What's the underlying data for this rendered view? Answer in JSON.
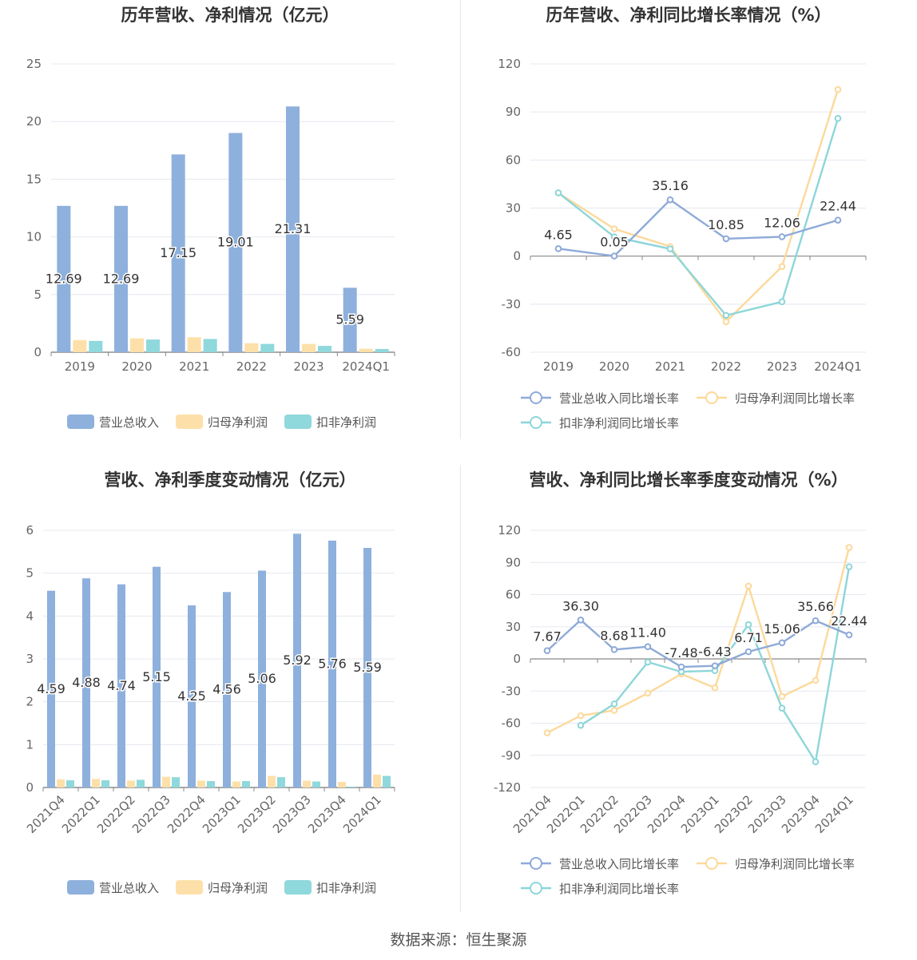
{
  "source": "数据来源：恒生聚源",
  "chart_data": [
    {
      "type": "bar",
      "title": "历年营收、净利情况（亿元）",
      "categories": [
        "2019",
        "2020",
        "2021",
        "2022",
        "2023",
        "2024Q1"
      ],
      "ylim": [
        0,
        25
      ],
      "yticks": [
        0,
        5,
        10,
        15,
        20,
        25
      ],
      "grid": true,
      "legend_position": "bottom",
      "series": [
        {
          "name": "营业总收入",
          "color": "#8eb0dc",
          "values": [
            12.69,
            12.69,
            17.15,
            19.01,
            21.31,
            5.59
          ],
          "labels": [
            "12.69",
            "12.69",
            "17.15",
            "19.01",
            "21.31",
            "5.59"
          ]
        },
        {
          "name": "归母净利润",
          "color": "#fde0a9",
          "values": [
            1.05,
            1.2,
            1.3,
            0.78,
            0.72,
            0.3
          ]
        },
        {
          "name": "扣非净利润",
          "color": "#8fd8db",
          "values": [
            0.98,
            1.1,
            1.15,
            0.72,
            0.55,
            0.28
          ]
        }
      ]
    },
    {
      "type": "line",
      "title": "历年营收、净利同比增长率情况（%）",
      "categories": [
        "2019",
        "2020",
        "2021",
        "2022",
        "2023",
        "2024Q1"
      ],
      "ylim": [
        -60,
        120
      ],
      "yticks": [
        -60,
        -30,
        0,
        30,
        60,
        90,
        120
      ],
      "grid": true,
      "legend_position": "bottom",
      "series": [
        {
          "name": "营业总收入同比增长率",
          "color": "#8eaad8",
          "values": [
            4.65,
            0.05,
            35.16,
            10.85,
            12.06,
            22.44
          ],
          "labels": [
            "4.65",
            "0.05",
            "35.16",
            "10.85",
            "12.06",
            "22.44"
          ]
        },
        {
          "name": "归母净利润同比增长率",
          "color": "#fcd99b",
          "values": [
            39.5,
            17,
            6,
            -41,
            -6.5,
            104
          ]
        },
        {
          "name": "扣非净利润同比增长率",
          "color": "#8dd6d9",
          "values": [
            39.5,
            12,
            4.5,
            -37,
            -28.5,
            86
          ]
        }
      ]
    },
    {
      "type": "bar",
      "title": "营收、净利季度变动情况（亿元）",
      "categories": [
        "2021Q4",
        "2022Q1",
        "2022Q2",
        "2022Q3",
        "2022Q4",
        "2023Q1",
        "2023Q2",
        "2023Q3",
        "2023Q4",
        "2024Q1"
      ],
      "ylim": [
        0,
        6
      ],
      "yticks": [
        0,
        1,
        2,
        3,
        4,
        5,
        6
      ],
      "grid": true,
      "legend_position": "bottom",
      "series": [
        {
          "name": "营业总收入",
          "color": "#8eb0dc",
          "values": [
            4.59,
            4.88,
            4.74,
            5.15,
            4.25,
            4.56,
            5.06,
            5.92,
            5.76,
            5.59
          ],
          "labels": [
            "4.59",
            "4.88",
            "4.74",
            "5.15",
            "4.25",
            "4.56",
            "5.06",
            "5.92",
            "5.76",
            "5.59"
          ]
        },
        {
          "name": "归母净利润",
          "color": "#fde0a9",
          "values": [
            0.19,
            0.2,
            0.16,
            0.25,
            0.16,
            0.14,
            0.27,
            0.16,
            0.13,
            0.3
          ]
        },
        {
          "name": "扣非净利润",
          "color": "#8fd8db",
          "values": [
            0.17,
            0.17,
            0.18,
            0.24,
            0.15,
            0.15,
            0.24,
            0.14,
            0.02,
            0.27
          ]
        }
      ]
    },
    {
      "type": "line",
      "title": "营收、净利同比增长率季度变动情况（%）",
      "categories": [
        "2021Q4",
        "2022Q1",
        "2022Q2",
        "2022Q3",
        "2022Q4",
        "2023Q1",
        "2023Q2",
        "2023Q3",
        "2023Q4",
        "2024Q1"
      ],
      "ylim": [
        -120,
        120
      ],
      "yticks": [
        -120,
        -90,
        -60,
        -30,
        0,
        30,
        60,
        90,
        120
      ],
      "grid": true,
      "legend_position": "bottom",
      "series": [
        {
          "name": "营业总收入同比增长率",
          "color": "#8eaad8",
          "values": [
            7.67,
            36.3,
            8.68,
            11.4,
            -7.48,
            -6.43,
            6.71,
            15.06,
            35.66,
            22.44
          ],
          "labels": [
            "7.67",
            "36.30",
            "8.68",
            "11.40",
            "-7.48",
            "-6.43",
            "6.71",
            "15.06",
            "35.66",
            "22.44"
          ]
        },
        {
          "name": "归母净利润同比增长率",
          "color": "#fcd99b",
          "values": [
            -69,
            -53,
            -48,
            -32,
            -14,
            -27,
            68,
            -35,
            -20,
            104
          ]
        },
        {
          "name": "扣非净利润同比增长率",
          "color": "#8dd6d9",
          "values": [
            null,
            -62,
            -42,
            -3,
            -12,
            -11,
            32,
            -46,
            -96,
            86
          ]
        }
      ]
    }
  ]
}
